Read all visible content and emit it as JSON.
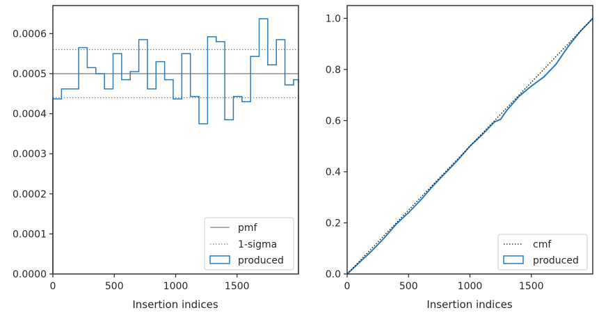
{
  "colors": {
    "produced": "#2b7bb9",
    "pmf": "#808080",
    "sigma": "#808080",
    "cmf": "#000000",
    "axis": "#262626"
  },
  "chart_data": [
    {
      "type": "line",
      "subtype": "step-histogram",
      "title": "",
      "xlabel": "Insertion indices",
      "ylabel": "",
      "xlim": [
        0,
        2000
      ],
      "ylim": [
        0,
        0.00067
      ],
      "xticks": [
        0,
        500,
        1000,
        1500
      ],
      "xtick_labels": [
        "0",
        "500",
        "1000",
        "1500"
      ],
      "yticks": [
        0,
        0.0001,
        0.0002,
        0.0003,
        0.0004,
        0.0005,
        0.0006
      ],
      "ytick_labels": [
        "0.0000",
        "0.0001",
        "0.0002",
        "0.0003",
        "0.0004",
        "0.0005",
        "0.0006"
      ],
      "grid": false,
      "legend": {
        "placement": "lower-right",
        "entries": [
          {
            "label": "pmf",
            "style": "solid-line"
          },
          {
            "label": "1-sigma",
            "style": "dotted-line"
          },
          {
            "label": "produced",
            "style": "step-box"
          }
        ]
      },
      "pmf": 0.0005,
      "sigma_band": [
        0.00044,
        0.00056
      ],
      "produced": {
        "bin_edges": [
          0,
          70,
          210,
          280,
          350,
          420,
          490,
          560,
          630,
          700,
          770,
          840,
          910,
          980,
          1050,
          1120,
          1190,
          1260,
          1330,
          1400,
          1470,
          1540,
          1610,
          1680,
          1750,
          1820,
          1890,
          1960,
          2000
        ],
        "values": [
          0.000437,
          0.000462,
          0.000565,
          0.000515,
          0.0005,
          0.000462,
          0.00055,
          0.000485,
          0.000505,
          0.000585,
          0.000462,
          0.00053,
          0.000485,
          0.000437,
          0.00055,
          0.000443,
          0.000375,
          0.000592,
          0.00058,
          0.000385,
          0.000443,
          0.00043,
          0.000543,
          0.000637,
          0.000522,
          0.000585,
          0.000472,
          0.000485
        ]
      }
    },
    {
      "type": "line",
      "title": "",
      "xlabel": "Insertion indices",
      "ylabel": "",
      "xlim": [
        0,
        2000
      ],
      "ylim": [
        0,
        1.05
      ],
      "xticks": [
        0,
        500,
        1000,
        1500
      ],
      "xtick_labels": [
        "0",
        "500",
        "1000",
        "1500"
      ],
      "yticks": [
        0,
        0.2,
        0.4,
        0.6,
        0.8,
        1.0
      ],
      "ytick_labels": [
        "0.0",
        "0.2",
        "0.4",
        "0.6",
        "0.8",
        "1.0"
      ],
      "grid": false,
      "legend": {
        "placement": "lower-right",
        "entries": [
          {
            "label": "cmf",
            "style": "dotted-line"
          },
          {
            "label": "produced",
            "style": "step-box"
          }
        ]
      },
      "cmf": {
        "x": [
          0,
          2000
        ],
        "y": [
          0,
          1.0
        ]
      },
      "produced": {
        "x": [
          0,
          100,
          200,
          300,
          400,
          500,
          600,
          700,
          800,
          900,
          1000,
          1100,
          1200,
          1250,
          1300,
          1400,
          1500,
          1600,
          1700,
          1800,
          1900,
          2000
        ],
        "y": [
          0,
          0.045,
          0.09,
          0.14,
          0.195,
          0.24,
          0.29,
          0.345,
          0.395,
          0.445,
          0.5,
          0.545,
          0.595,
          0.605,
          0.64,
          0.695,
          0.735,
          0.77,
          0.82,
          0.89,
          0.95,
          1.0
        ]
      }
    }
  ]
}
